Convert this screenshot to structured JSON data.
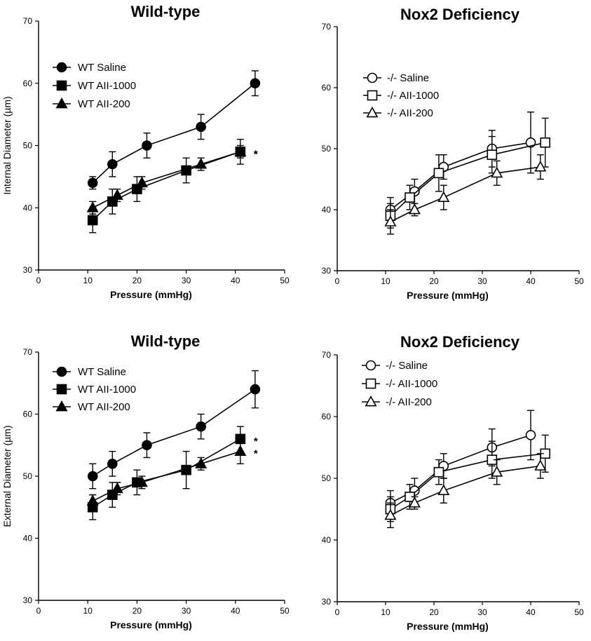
{
  "chart_data": [
    {
      "type": "line",
      "title": "Wild-type",
      "xlabel": "Pressure (mmHg)",
      "ylabel": "Internal Diameter (µm)",
      "xlim": [
        0,
        50
      ],
      "ylim": [
        30,
        70
      ],
      "xticks": [
        "0",
        "10",
        "20",
        "30",
        "40",
        "50"
      ],
      "yticks": [
        "30",
        "40",
        "50",
        "60",
        "70"
      ],
      "legend_position": "top-left",
      "series": [
        {
          "name": "WT Saline",
          "marker": "circle",
          "fill": "#000000",
          "x": [
            11,
            15,
            22,
            33,
            44
          ],
          "y": [
            44,
            47,
            50,
            53,
            60
          ],
          "err": [
            1,
            2,
            2,
            2,
            2
          ]
        },
        {
          "name": "WT AII-1000",
          "marker": "square",
          "fill": "#000000",
          "x": [
            11,
            15,
            20,
            30,
            41
          ],
          "y": [
            38,
            41,
            43,
            46,
            49
          ],
          "err": [
            2,
            2,
            2,
            2,
            2
          ],
          "annotation": "*"
        },
        {
          "name": "WT AII-200",
          "marker": "triangle",
          "fill": "#000000",
          "x": [
            11,
            16,
            21,
            33,
            41
          ],
          "y": [
            40,
            42,
            44,
            47,
            49
          ],
          "err": [
            1,
            1,
            1,
            1,
            1
          ],
          "annotation": "*"
        }
      ]
    },
    {
      "type": "line",
      "title": "Nox2 Deficiency",
      "xlabel": "Pressure (mmHg)",
      "ylabel": "",
      "xlim": [
        0,
        50
      ],
      "ylim": [
        30,
        70
      ],
      "xticks": [
        "0",
        "10",
        "20",
        "30",
        "40",
        "50"
      ],
      "yticks": [
        "30",
        "40",
        "50",
        "60",
        "70"
      ],
      "legend_position": "top-left",
      "series": [
        {
          "name": "-/- Saline",
          "marker": "circle",
          "fill": "#ffffff",
          "x": [
            11,
            16,
            22,
            32,
            40
          ],
          "y": [
            40,
            43,
            47,
            50,
            51
          ],
          "err": [
            2,
            2,
            2,
            3,
            5
          ]
        },
        {
          "name": "-/- AII-1000",
          "marker": "square",
          "fill": "#ffffff",
          "x": [
            11,
            15,
            21,
            32,
            43
          ],
          "y": [
            39,
            42,
            46,
            49,
            51
          ],
          "err": [
            2,
            2,
            3,
            3,
            4
          ]
        },
        {
          "name": "-/- AII-200",
          "marker": "triangle",
          "fill": "#ffffff",
          "x": [
            11,
            16,
            22,
            33,
            42
          ],
          "y": [
            38,
            40,
            42,
            46,
            47
          ],
          "err": [
            2,
            1,
            2,
            2,
            2
          ]
        }
      ]
    },
    {
      "type": "line",
      "title": "Wild-type",
      "xlabel": "Pressure (mmHg)",
      "ylabel": "External Diameter (µm)",
      "xlim": [
        0,
        50
      ],
      "ylim": [
        30,
        70
      ],
      "xticks": [
        "0",
        "10",
        "20",
        "30",
        "40",
        "50"
      ],
      "yticks": [
        "30",
        "40",
        "50",
        "60",
        "70"
      ],
      "legend_position": "top-left",
      "series": [
        {
          "name": "WT Saline",
          "marker": "circle",
          "fill": "#000000",
          "x": [
            11,
            15,
            22,
            33,
            44
          ],
          "y": [
            50,
            52,
            55,
            58,
            64
          ],
          "err": [
            2,
            2,
            2,
            2,
            3
          ]
        },
        {
          "name": "WT AII-1000",
          "marker": "square",
          "fill": "#000000",
          "x": [
            11,
            15,
            20,
            30,
            41
          ],
          "y": [
            45,
            47,
            49,
            51,
            56
          ],
          "err": [
            2,
            2,
            2,
            3,
            2
          ],
          "annotation": "*"
        },
        {
          "name": "WT AII-200",
          "marker": "triangle",
          "fill": "#000000",
          "x": [
            11,
            16,
            21,
            33,
            41
          ],
          "y": [
            46,
            48,
            49,
            52,
            54
          ],
          "err": [
            1,
            1,
            1,
            1,
            2
          ],
          "annotation": "*"
        }
      ]
    },
    {
      "type": "line",
      "title": "Nox2 Deficiency",
      "xlabel": "Pressure (mmHg)",
      "ylabel": "",
      "xlim": [
        0,
        50
      ],
      "ylim": [
        30,
        70
      ],
      "xticks": [
        "0",
        "10",
        "20",
        "30",
        "40",
        "50"
      ],
      "yticks": [
        "30",
        "40",
        "50",
        "60",
        "70"
      ],
      "legend_position": "top-left",
      "series": [
        {
          "name": "-/- Saline",
          "marker": "circle",
          "fill": "#ffffff",
          "x": [
            11,
            16,
            22,
            32,
            40
          ],
          "y": [
            46,
            48,
            52,
            55,
            57
          ],
          "err": [
            2,
            2,
            2,
            3,
            4
          ]
        },
        {
          "name": "-/- AII-1000",
          "marker": "square",
          "fill": "#ffffff",
          "x": [
            11,
            15,
            21,
            32,
            43
          ],
          "y": [
            45,
            47,
            51,
            53,
            54
          ],
          "err": [
            2,
            2,
            2,
            3,
            3
          ]
        },
        {
          "name": "-/- AII-200",
          "marker": "triangle",
          "fill": "#ffffff",
          "x": [
            11,
            16,
            22,
            33,
            42
          ],
          "y": [
            44,
            46,
            48,
            51,
            52
          ],
          "err": [
            2,
            1,
            2,
            2,
            2
          ]
        }
      ]
    }
  ]
}
